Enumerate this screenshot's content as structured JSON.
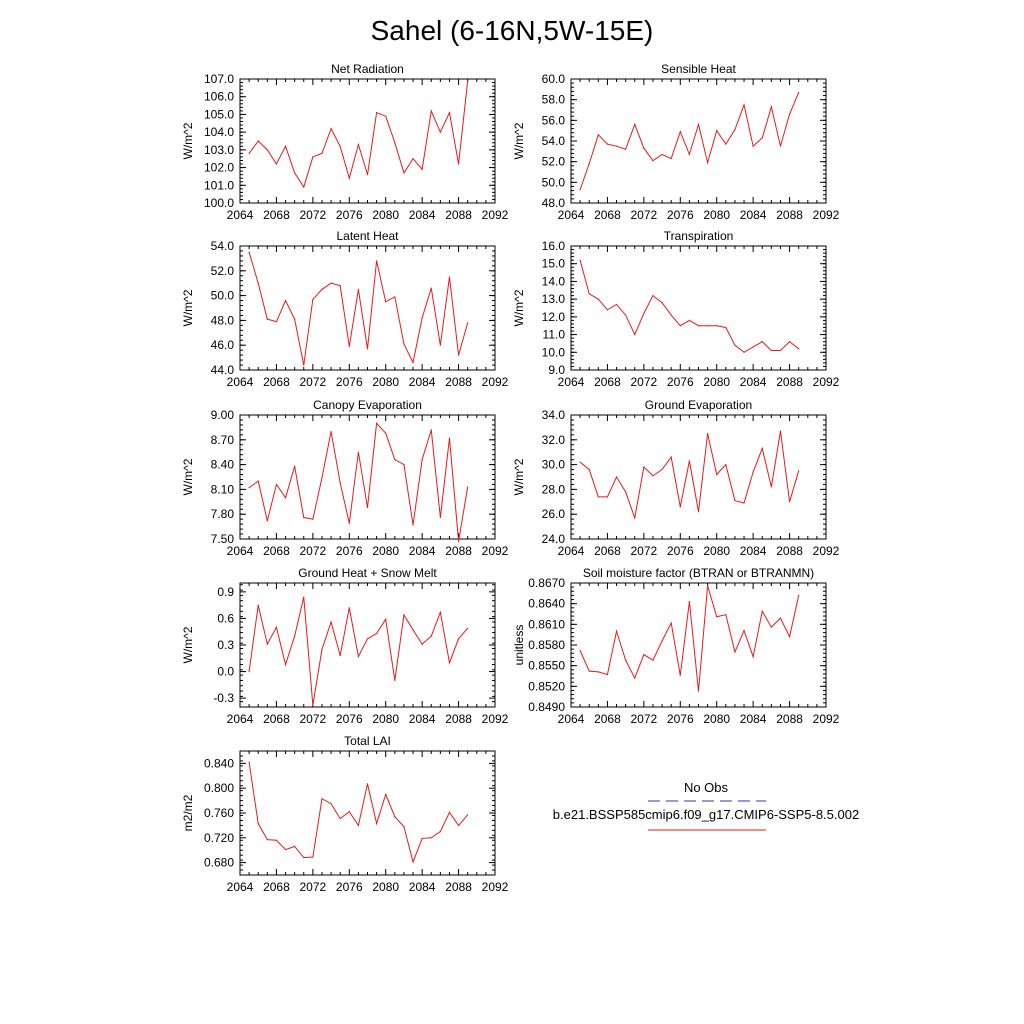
{
  "figure": {
    "title": "Sahel (6-16N,5W-15E)",
    "series_color": "#e8191e",
    "obs_color": "#3b2eb0"
  },
  "legend": {
    "obs_label": "No Obs",
    "model_label": "b.e21.BSSP585cmip6.f09_g17.CMIP6-SSP5-8.5.002"
  },
  "chart_data": [
    {
      "type": "line",
      "title": "Net Radiation",
      "ylabel": "W/m^2",
      "xlim": [
        2064,
        2092
      ],
      "ylim": [
        100.0,
        107.0
      ],
      "xticks": [
        "2064",
        "2068",
        "2072",
        "2076",
        "2080",
        "2084",
        "2088",
        "2092"
      ],
      "yticks": [
        "100.0",
        "101.0",
        "102.0",
        "103.0",
        "104.0",
        "105.0",
        "106.0",
        "107.0"
      ],
      "x": [
        2065,
        2066,
        2067,
        2068,
        2069,
        2070,
        2071,
        2072,
        2073,
        2074,
        2075,
        2076,
        2077,
        2078,
        2079,
        2080,
        2081,
        2082,
        2083,
        2084,
        2085,
        2086,
        2087,
        2088,
        2089
      ],
      "values": [
        102.8,
        103.5,
        103.0,
        102.2,
        103.2,
        101.7,
        100.9,
        102.6,
        102.8,
        104.2,
        103.2,
        101.4,
        103.3,
        101.6,
        105.1,
        104.9,
        103.4,
        101.7,
        102.5,
        101.9,
        105.2,
        104.0,
        105.1,
        102.2,
        106.9
      ]
    },
    {
      "type": "line",
      "title": "Sensible Heat",
      "ylabel": "W/m^2",
      "xlim": [
        2064,
        2092
      ],
      "ylim": [
        48.0,
        60.0
      ],
      "xticks": [
        "2064",
        "2068",
        "2072",
        "2076",
        "2080",
        "2084",
        "2088",
        "2092"
      ],
      "yticks": [
        "48.0",
        "50.0",
        "52.0",
        "54.0",
        "56.0",
        "58.0",
        "60.0"
      ],
      "x": [
        2065,
        2066,
        2067,
        2068,
        2069,
        2070,
        2071,
        2072,
        2073,
        2074,
        2075,
        2076,
        2077,
        2078,
        2079,
        2080,
        2081,
        2082,
        2083,
        2084,
        2085,
        2086,
        2087,
        2088,
        2089
      ],
      "values": [
        49.3,
        51.8,
        54.6,
        53.7,
        53.5,
        53.2,
        55.6,
        53.3,
        52.1,
        52.7,
        52.3,
        54.9,
        52.7,
        55.6,
        51.9,
        55.0,
        53.7,
        55.1,
        57.5,
        53.5,
        54.3,
        57.3,
        53.5,
        56.6,
        58.7
      ]
    },
    {
      "type": "line",
      "title": "Latent Heat",
      "ylabel": "W/m^2",
      "xlim": [
        2064,
        2092
      ],
      "ylim": [
        44.0,
        54.0
      ],
      "xticks": [
        "2064",
        "2068",
        "2072",
        "2076",
        "2080",
        "2084",
        "2088",
        "2092"
      ],
      "yticks": [
        "44.0",
        "46.0",
        "48.0",
        "50.0",
        "52.0",
        "54.0"
      ],
      "x": [
        2065,
        2066,
        2067,
        2068,
        2069,
        2070,
        2071,
        2072,
        2073,
        2074,
        2075,
        2076,
        2077,
        2078,
        2079,
        2080,
        2081,
        2082,
        2083,
        2084,
        2085,
        2086,
        2087,
        2088,
        2089
      ],
      "values": [
        53.5,
        51.0,
        48.1,
        47.9,
        49.6,
        48.1,
        44.4,
        49.7,
        50.5,
        51.0,
        50.8,
        45.9,
        50.5,
        45.7,
        52.8,
        49.5,
        49.9,
        46.1,
        44.6,
        48.2,
        50.6,
        46.0,
        51.5,
        45.2,
        47.8
      ]
    },
    {
      "type": "line",
      "title": "Transpiration",
      "ylabel": "W/m^2",
      "xlim": [
        2064,
        2092
      ],
      "ylim": [
        9.0,
        16.0
      ],
      "xticks": [
        "2064",
        "2068",
        "2072",
        "2076",
        "2080",
        "2084",
        "2088",
        "2092"
      ],
      "yticks": [
        "9.0",
        "10.0",
        "11.0",
        "12.0",
        "13.0",
        "14.0",
        "15.0",
        "16.0"
      ],
      "x": [
        2065,
        2066,
        2067,
        2068,
        2069,
        2070,
        2071,
        2072,
        2073,
        2074,
        2075,
        2076,
        2077,
        2078,
        2079,
        2080,
        2081,
        2082,
        2083,
        2084,
        2085,
        2086,
        2087,
        2088,
        2089
      ],
      "values": [
        15.2,
        13.3,
        13.0,
        12.4,
        12.7,
        12.1,
        11.0,
        12.2,
        13.2,
        12.8,
        12.1,
        11.5,
        11.8,
        11.5,
        11.5,
        11.5,
        11.4,
        10.4,
        10.0,
        10.3,
        10.6,
        10.1,
        10.1,
        10.6,
        10.2
      ]
    },
    {
      "type": "line",
      "title": "Canopy Evaporation",
      "ylabel": "W/m^2",
      "xlim": [
        2064,
        2092
      ],
      "ylim": [
        7.5,
        9.0
      ],
      "xticks": [
        "2064",
        "2068",
        "2072",
        "2076",
        "2080",
        "2084",
        "2088",
        "2092"
      ],
      "yticks": [
        "7.50",
        "7.80",
        "8.10",
        "8.40",
        "8.70",
        "9.00"
      ],
      "x": [
        2065,
        2066,
        2067,
        2068,
        2069,
        2070,
        2071,
        2072,
        2073,
        2074,
        2075,
        2076,
        2077,
        2078,
        2079,
        2080,
        2081,
        2082,
        2083,
        2084,
        2085,
        2086,
        2087,
        2088,
        2089
      ],
      "values": [
        8.12,
        8.2,
        7.72,
        8.16,
        8.0,
        8.38,
        7.76,
        7.74,
        8.24,
        8.8,
        8.18,
        7.69,
        8.55,
        7.88,
        8.9,
        8.78,
        8.46,
        8.4,
        7.67,
        8.46,
        8.82,
        7.76,
        8.72,
        7.47,
        8.13
      ]
    },
    {
      "type": "line",
      "title": "Ground Evaporation",
      "ylabel": "W/m^2",
      "xlim": [
        2064,
        2092
      ],
      "ylim": [
        24.0,
        34.0
      ],
      "xticks": [
        "2064",
        "2068",
        "2072",
        "2076",
        "2080",
        "2084",
        "2088",
        "2092"
      ],
      "yticks": [
        "24.0",
        "26.0",
        "28.0",
        "30.0",
        "32.0",
        "34.0"
      ],
      "x": [
        2065,
        2066,
        2067,
        2068,
        2069,
        2070,
        2071,
        2072,
        2073,
        2074,
        2075,
        2076,
        2077,
        2078,
        2079,
        2080,
        2081,
        2082,
        2083,
        2084,
        2085,
        2086,
        2087,
        2088,
        2089
      ],
      "values": [
        30.2,
        29.6,
        27.4,
        27.4,
        29.0,
        27.8,
        25.7,
        29.8,
        29.1,
        29.6,
        30.6,
        26.6,
        30.3,
        26.2,
        32.5,
        29.2,
        30.0,
        27.1,
        26.9,
        29.4,
        31.3,
        28.2,
        32.7,
        27.0,
        29.5
      ]
    },
    {
      "type": "line",
      "title": "Ground Heat + Snow Melt",
      "ylabel": "W/m^2",
      "xlim": [
        2064,
        2092
      ],
      "ylim": [
        -0.4,
        1.0
      ],
      "xticks": [
        "2064",
        "2068",
        "2072",
        "2076",
        "2080",
        "2084",
        "2088",
        "2092"
      ],
      "yticks": [
        "-0.3",
        "0.0",
        "0.3",
        "0.6",
        "0.9"
      ],
      "ytick_values": [
        -0.3,
        0.0,
        0.3,
        0.6,
        0.9
      ],
      "x": [
        2065,
        2066,
        2067,
        2068,
        2069,
        2070,
        2071,
        2072,
        2073,
        2074,
        2075,
        2076,
        2077,
        2078,
        2079,
        2080,
        2081,
        2082,
        2083,
        2084,
        2085,
        2086,
        2087,
        2088,
        2089
      ],
      "values": [
        0.0,
        0.75,
        0.31,
        0.5,
        0.08,
        0.4,
        0.84,
        -0.38,
        0.25,
        0.56,
        0.18,
        0.72,
        0.17,
        0.37,
        0.43,
        0.59,
        -0.1,
        0.64,
        0.47,
        0.31,
        0.4,
        0.67,
        0.1,
        0.37,
        0.49
      ]
    },
    {
      "type": "line",
      "title": "Soil moisture factor (BTRAN or BTRANMN)",
      "ylabel": "unitless",
      "xlim": [
        2064,
        2092
      ],
      "ylim": [
        0.849,
        0.867
      ],
      "xticks": [
        "2064",
        "2068",
        "2072",
        "2076",
        "2080",
        "2084",
        "2088",
        "2092"
      ],
      "yticks": [
        "0.8490",
        "0.8520",
        "0.8550",
        "0.8580",
        "0.8610",
        "0.8640",
        "0.8670"
      ],
      "x": [
        2065,
        2066,
        2067,
        2068,
        2069,
        2070,
        2071,
        2072,
        2073,
        2074,
        2075,
        2076,
        2077,
        2078,
        2079,
        2080,
        2081,
        2082,
        2083,
        2084,
        2085,
        2086,
        2087,
        2088,
        2089
      ],
      "values": [
        0.8572,
        0.8542,
        0.8541,
        0.8537,
        0.86,
        0.8558,
        0.8532,
        0.8566,
        0.8558,
        0.8586,
        0.8612,
        0.8536,
        0.8643,
        0.8513,
        0.8666,
        0.8621,
        0.8624,
        0.857,
        0.8601,
        0.8563,
        0.8629,
        0.8606,
        0.8619,
        0.8592,
        0.8652
      ]
    },
    {
      "type": "line",
      "title": "Total LAI",
      "ylabel": "m2/m2",
      "xlim": [
        2064,
        2092
      ],
      "ylim": [
        0.66,
        0.86
      ],
      "xticks": [
        "2064",
        "2068",
        "2072",
        "2076",
        "2080",
        "2084",
        "2088",
        "2092"
      ],
      "yticks": [
        "0.680",
        "0.720",
        "0.760",
        "0.800",
        "0.840"
      ],
      "ytick_values": [
        0.68,
        0.72,
        0.76,
        0.8,
        0.84
      ],
      "x": [
        2065,
        2066,
        2067,
        2068,
        2069,
        2070,
        2071,
        2072,
        2073,
        2074,
        2075,
        2076,
        2077,
        2078,
        2079,
        2080,
        2081,
        2082,
        2083,
        2084,
        2085,
        2086,
        2087,
        2088,
        2089
      ],
      "values": [
        0.842,
        0.743,
        0.717,
        0.716,
        0.701,
        0.706,
        0.688,
        0.689,
        0.783,
        0.775,
        0.751,
        0.762,
        0.74,
        0.807,
        0.743,
        0.79,
        0.754,
        0.738,
        0.681,
        0.719,
        0.72,
        0.73,
        0.761,
        0.74,
        0.757
      ]
    }
  ]
}
